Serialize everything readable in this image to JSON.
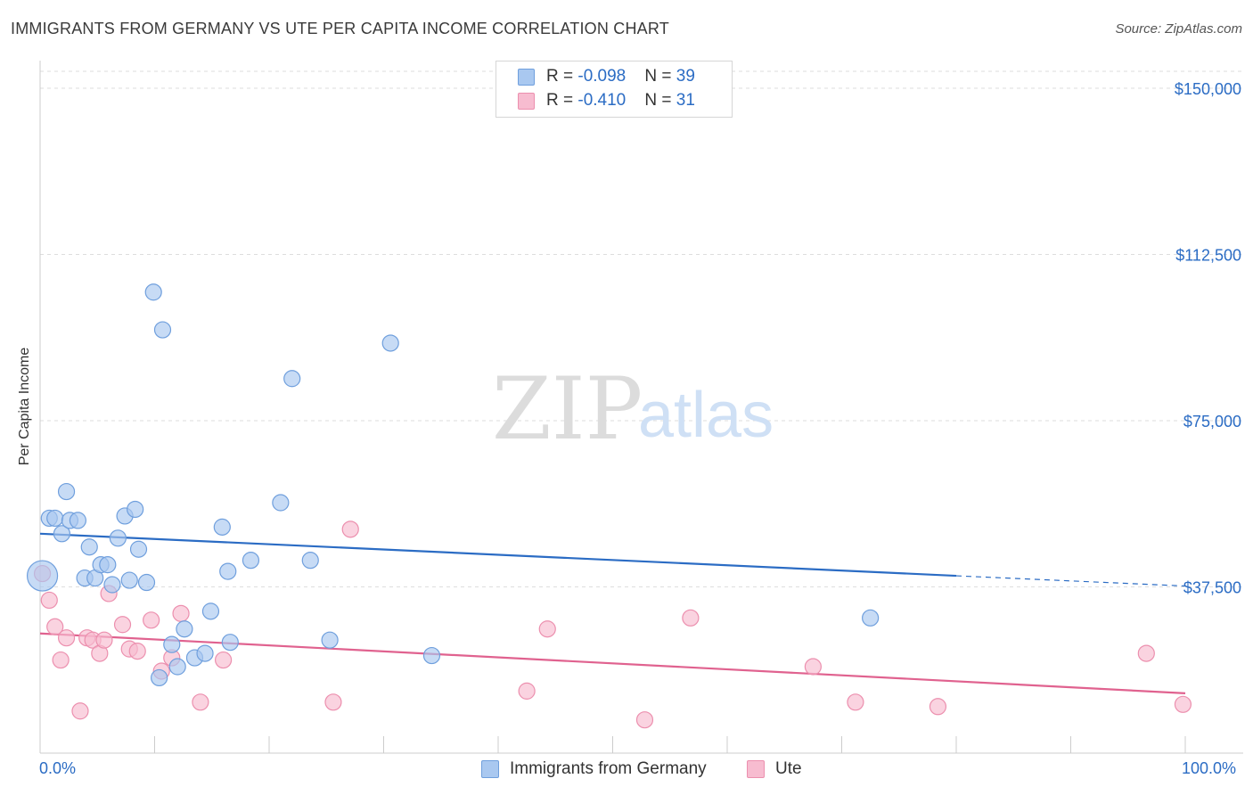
{
  "title": "IMMIGRANTS FROM GERMANY VS UTE PER CAPITA INCOME CORRELATION CHART",
  "source": "Source: ZipAtlas.com",
  "watermark": {
    "zip": "ZIP",
    "atlas": "atlas"
  },
  "legend_stats": [
    {
      "r_label": "R = ",
      "r_value": "-0.098",
      "n_label": "N = ",
      "n_value": "39"
    },
    {
      "r_label": "R = ",
      "r_value": "-0.410",
      "n_label": "N = ",
      "n_value": "31"
    }
  ],
  "x_axis": {
    "min_label": "0.0%",
    "max_label": "100.0%"
  },
  "colors": {
    "blue_fill": "#a9c8f0",
    "blue_stroke": "#6f9fdd",
    "blue_line": "#2b6cc4",
    "pink_fill": "#f7bcd0",
    "pink_stroke": "#ec8fae",
    "pink_line": "#e0628f",
    "axis_text": "#2b6cc4",
    "grid": "#dddddd"
  },
  "chart_data": {
    "type": "scatter",
    "title": "IMMIGRANTS FROM GERMANY VS UTE PER CAPITA INCOME CORRELATION CHART",
    "xlabel": "",
    "ylabel": "Per Capita Income",
    "xlim": [
      0,
      100
    ],
    "ylim": [
      0,
      150000
    ],
    "y_ticks": [
      37500,
      75000,
      112500,
      150000
    ],
    "y_tick_labels": [
      "$37,500",
      "$75,000",
      "$112,500",
      "$150,000"
    ],
    "grid": true,
    "legend_position": "top-center",
    "series": [
      {
        "name": "Immigrants from Germany",
        "color": "#a9c8f0",
        "points": [
          [
            0.2,
            40000
          ],
          [
            0.8,
            53000
          ],
          [
            1.3,
            53000
          ],
          [
            1.9,
            49500
          ],
          [
            2.3,
            59000
          ],
          [
            2.6,
            52500
          ],
          [
            3.3,
            52500
          ],
          [
            3.9,
            39500
          ],
          [
            4.3,
            46500
          ],
          [
            4.8,
            39500
          ],
          [
            5.3,
            42500
          ],
          [
            5.9,
            42500
          ],
          [
            6.3,
            38000
          ],
          [
            6.8,
            48500
          ],
          [
            7.4,
            53500
          ],
          [
            7.8,
            39000
          ],
          [
            8.3,
            55000
          ],
          [
            8.6,
            46000
          ],
          [
            9.3,
            38500
          ],
          [
            9.9,
            104000
          ],
          [
            10.4,
            17000
          ],
          [
            10.7,
            95500
          ],
          [
            11.5,
            24500
          ],
          [
            12.0,
            19500
          ],
          [
            12.6,
            28000
          ],
          [
            13.5,
            21500
          ],
          [
            14.4,
            22500
          ],
          [
            14.9,
            32000
          ],
          [
            15.9,
            51000
          ],
          [
            16.4,
            41000
          ],
          [
            16.6,
            25000
          ],
          [
            18.4,
            43500
          ],
          [
            21.0,
            56500
          ],
          [
            22.0,
            84500
          ],
          [
            23.6,
            43500
          ],
          [
            25.3,
            25500
          ],
          [
            30.6,
            92500
          ],
          [
            34.2,
            22000
          ],
          [
            72.5,
            30500
          ]
        ]
      },
      {
        "name": "Ute",
        "color": "#f7bcd0",
        "points": [
          [
            0.2,
            40500
          ],
          [
            0.8,
            34500
          ],
          [
            1.3,
            28500
          ],
          [
            1.8,
            21000
          ],
          [
            2.3,
            26000
          ],
          [
            3.5,
            9500
          ],
          [
            4.1,
            26000
          ],
          [
            4.6,
            25500
          ],
          [
            5.2,
            22500
          ],
          [
            5.6,
            25500
          ],
          [
            6.0,
            36000
          ],
          [
            7.2,
            29000
          ],
          [
            7.8,
            23500
          ],
          [
            8.5,
            23000
          ],
          [
            9.7,
            30000
          ],
          [
            10.6,
            18500
          ],
          [
            11.5,
            21500
          ],
          [
            12.3,
            31500
          ],
          [
            14.0,
            11500
          ],
          [
            16.0,
            21000
          ],
          [
            25.6,
            11500
          ],
          [
            27.1,
            50500
          ],
          [
            42.5,
            14000
          ],
          [
            44.3,
            28000
          ],
          [
            52.8,
            7500
          ],
          [
            56.8,
            30500
          ],
          [
            67.5,
            19500
          ],
          [
            71.2,
            11500
          ],
          [
            78.4,
            10500
          ],
          [
            96.6,
            22500
          ],
          [
            99.8,
            11000
          ]
        ]
      }
    ],
    "trend_lines": [
      {
        "series": "Immigrants from Germany",
        "x": [
          0,
          80,
          100
        ],
        "y": [
          49500,
          40000,
          37700
        ],
        "dashed_after_x": 80
      },
      {
        "series": "Ute",
        "x": [
          0,
          100
        ],
        "y": [
          27000,
          13500
        ]
      }
    ]
  }
}
